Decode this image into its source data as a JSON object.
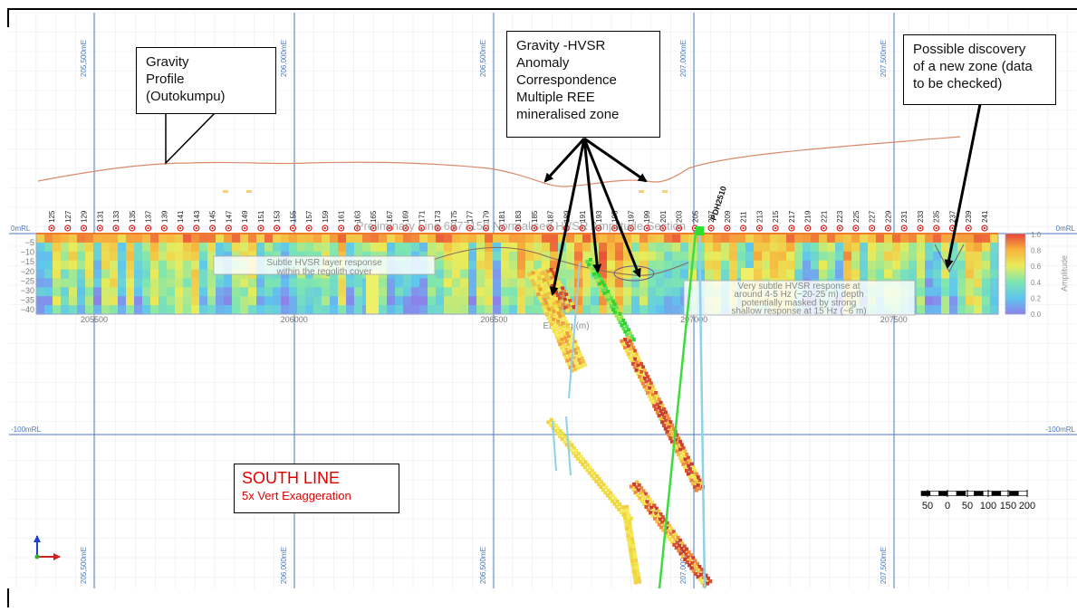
{
  "callouts": {
    "gravity_profile": "Gravity\nProfile\n(Outokumpu)",
    "correspondence": "Gravity -HVSR\nAnomaly\nCorrespondence\nMultiple REE\nmineralised zone",
    "discovery": "Possible discovery\nof a new zone (data\nto be checked)"
  },
  "legend": {
    "title": "SOUTH LINE",
    "subtitle": "5x Vert Exaggeration"
  },
  "section": {
    "overlay_title": "Preliminary Line 6977150 Normalised HVSR Amplitude Section",
    "annotation_left": "Subtle HVSR layer response\nwithin the regolith cover",
    "annotation_right": "Very subtle HVSR response at\naround 4-5 Hz (~20-25 m) depth\npotentially masked by strong\nshallow response at 15 Hz (~6 m)",
    "depth_ticks": [
      "−5",
      "−10",
      "−15",
      "−20",
      "−25",
      "−30",
      "−35",
      "−40"
    ],
    "easting_ticks": [
      "205500",
      "206000",
      "206500",
      "207000",
      "207500"
    ],
    "easting_label": "Easting (m)",
    "colorbar_ticks": [
      "1.0",
      "0.8",
      "0.6",
      "0.4",
      "0.2",
      "0.0"
    ],
    "colorbar_label": "Amplitude"
  },
  "grid": {
    "top_labels": [
      "205,500mE",
      "206,000mE",
      "206,500mE",
      "207,000mE",
      "207,500mE"
    ],
    "bottom_labels": [
      "205,500mE",
      "206,000mE",
      "206,500mE",
      "207,000mE",
      "207,500mE"
    ],
    "rl_left": [
      "0mRL",
      "-100mRL"
    ],
    "rl_right": [
      "0mRL",
      "-100mRL"
    ]
  },
  "stations": [
    "125",
    "127",
    "129",
    "131",
    "133",
    "135",
    "137",
    "139",
    "141",
    "143",
    "145",
    "147",
    "149",
    "151",
    "153",
    "155",
    "157",
    "159",
    "161",
    "163",
    "165",
    "167",
    "169",
    "171",
    "173",
    "175",
    "177",
    "179",
    "181",
    "183",
    "185",
    "187",
    "189",
    "191",
    "193",
    "195",
    "197",
    "199",
    "201",
    "203",
    "205",
    "207",
    "209",
    "211",
    "213",
    "215",
    "217",
    "219",
    "221",
    "223",
    "225",
    "227",
    "229",
    "231",
    "233",
    "235",
    "237",
    "239",
    "241"
  ],
  "drillhole": "PDH2510",
  "scale_bar": {
    "labels": [
      "50",
      "0",
      "50",
      "100",
      "150",
      "200"
    ]
  },
  "colors": {
    "title_red": "#e00000",
    "grid_blue": "#4a78c2",
    "gravity_line": "#d98a6a",
    "drill_green": "#22cc22"
  }
}
